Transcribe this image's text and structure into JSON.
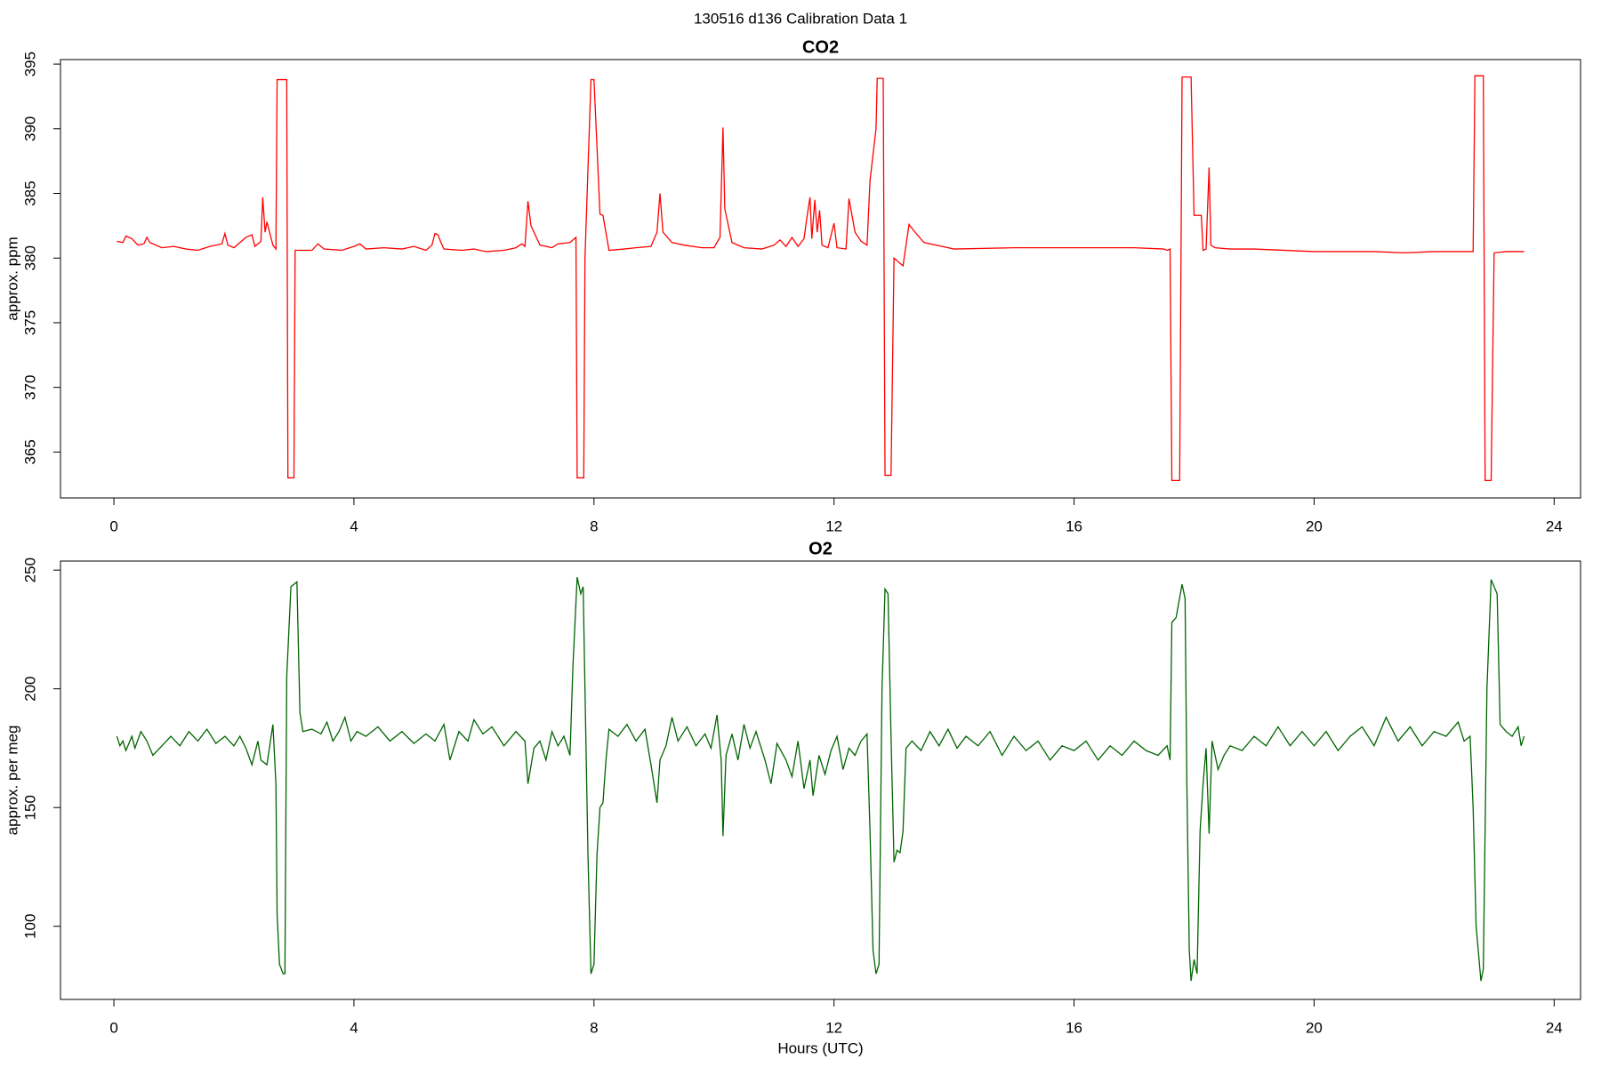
{
  "title": "130516   d136   Calibration Data 1",
  "chart_data": [
    {
      "type": "line",
      "title": "CO2",
      "ylabel": "approx. ppm",
      "color": "#ff0000",
      "xlim": [
        -0.89,
        24.44
      ],
      "xticks": [
        0,
        4,
        8,
        12,
        16,
        20,
        24
      ],
      "ylim": [
        361.45,
        395.35
      ],
      "yticks": [
        365,
        370,
        375,
        380,
        385,
        390,
        395
      ],
      "x": [
        0.05,
        0.15,
        0.2,
        0.3,
        0.4,
        0.5,
        0.55,
        0.6,
        0.8,
        1.0,
        1.2,
        1.4,
        1.6,
        1.8,
        1.85,
        1.9,
        2.0,
        2.2,
        2.3,
        2.35,
        2.45,
        2.48,
        2.52,
        2.55,
        2.65,
        2.7,
        2.72,
        2.88,
        2.9,
        3.0,
        3.02,
        3.3,
        3.4,
        3.5,
        3.8,
        4.0,
        4.1,
        4.2,
        4.5,
        4.8,
        5.0,
        5.2,
        5.3,
        5.35,
        5.4,
        5.45,
        5.5,
        5.8,
        6.0,
        6.2,
        6.5,
        6.7,
        6.8,
        6.85,
        6.9,
        6.95,
        7.1,
        7.3,
        7.4,
        7.6,
        7.7,
        7.72,
        7.83,
        7.85,
        7.95,
        8.0,
        8.1,
        8.15,
        8.25,
        8.5,
        8.7,
        8.95,
        9.05,
        9.1,
        9.15,
        9.3,
        9.5,
        9.8,
        10.0,
        10.1,
        10.15,
        10.18,
        10.3,
        10.5,
        10.8,
        11.0,
        11.1,
        11.2,
        11.3,
        11.4,
        11.5,
        11.55,
        11.6,
        11.63,
        11.68,
        11.72,
        11.76,
        11.8,
        11.9,
        12.0,
        12.05,
        12.2,
        12.25,
        12.35,
        12.45,
        12.55,
        12.6,
        12.7,
        12.72,
        12.82,
        12.85,
        12.95,
        13.0,
        13.15,
        13.2,
        13.25,
        13.35,
        13.5,
        13.8,
        14.0,
        15.0,
        16.0,
        17.0,
        17.5,
        17.55,
        17.6,
        17.63,
        17.76,
        17.8,
        17.95,
        18.0,
        18.12,
        18.15,
        18.2,
        18.25,
        18.28,
        18.35,
        18.6,
        19.0,
        20.0,
        21.0,
        21.5,
        22.0,
        22.65,
        22.68,
        22.82,
        22.85,
        22.95,
        23.0,
        23.2,
        23.5
      ],
      "values": [
        381.3,
        381.2,
        381.7,
        381.5,
        381.0,
        381.1,
        381.6,
        381.2,
        380.8,
        380.9,
        380.7,
        380.6,
        380.9,
        381.1,
        381.9,
        381.0,
        380.8,
        381.6,
        381.8,
        380.9,
        381.3,
        384.7,
        382.0,
        382.8,
        381.0,
        380.7,
        393.8,
        393.8,
        363.0,
        363.0,
        380.6,
        380.6,
        381.1,
        380.7,
        380.6,
        380.9,
        381.1,
        380.7,
        380.8,
        380.7,
        380.9,
        380.6,
        381.0,
        381.9,
        381.8,
        381.2,
        380.7,
        380.6,
        380.7,
        380.5,
        380.6,
        380.8,
        381.1,
        380.9,
        384.4,
        382.5,
        381.0,
        380.8,
        381.1,
        381.2,
        381.6,
        363.0,
        363.0,
        380.0,
        393.8,
        393.8,
        383.4,
        383.3,
        380.6,
        380.7,
        380.8,
        380.9,
        382.0,
        385.0,
        382.0,
        381.2,
        381.0,
        380.8,
        380.8,
        381.6,
        390.1,
        383.8,
        381.2,
        380.8,
        380.7,
        381.0,
        381.4,
        380.9,
        381.6,
        380.9,
        381.5,
        383.2,
        384.7,
        381.5,
        384.5,
        382.0,
        383.7,
        381.0,
        380.8,
        382.7,
        380.8,
        380.7,
        384.6,
        382.0,
        381.3,
        381.0,
        386.0,
        390.0,
        393.9,
        393.9,
        363.2,
        363.2,
        380.0,
        379.4,
        381.0,
        382.6,
        382.0,
        381.2,
        380.9,
        380.7,
        380.8,
        380.8,
        380.8,
        380.7,
        380.6,
        380.7,
        362.8,
        362.8,
        394.0,
        394.0,
        383.3,
        383.3,
        380.6,
        380.7,
        387.0,
        381.0,
        380.8,
        380.7,
        380.7,
        380.5,
        380.5,
        380.4,
        380.5,
        380.5,
        394.1,
        394.1,
        362.8,
        362.8,
        380.4,
        380.5,
        380.5
      ]
    },
    {
      "type": "line",
      "title": "O2",
      "ylabel": "approx. per meg",
      "xlabel": "Hours (UTC)",
      "color": "#006400",
      "xlim": [
        -0.89,
        24.44
      ],
      "xticks": [
        0,
        4,
        8,
        12,
        16,
        20,
        24
      ],
      "ylim": [
        69.2,
        253.8
      ],
      "yticks": [
        100,
        150,
        200,
        250
      ],
      "x": [
        0.05,
        0.1,
        0.15,
        0.2,
        0.3,
        0.35,
        0.45,
        0.55,
        0.65,
        0.8,
        0.95,
        1.1,
        1.25,
        1.4,
        1.55,
        1.7,
        1.85,
        2.0,
        2.1,
        2.2,
        2.3,
        2.4,
        2.45,
        2.55,
        2.65,
        2.7,
        2.72,
        2.76,
        2.82,
        2.85,
        2.88,
        2.95,
        3.05,
        3.1,
        3.15,
        3.3,
        3.45,
        3.55,
        3.65,
        3.75,
        3.85,
        3.95,
        4.05,
        4.2,
        4.4,
        4.6,
        4.8,
        5.0,
        5.2,
        5.35,
        5.5,
        5.6,
        5.75,
        5.9,
        6.0,
        6.15,
        6.3,
        6.5,
        6.7,
        6.85,
        6.9,
        7.0,
        7.1,
        7.2,
        7.3,
        7.4,
        7.5,
        7.6,
        7.65,
        7.72,
        7.78,
        7.82,
        7.85,
        7.9,
        7.95,
        8.0,
        8.05,
        8.1,
        8.15,
        8.2,
        8.25,
        8.4,
        8.55,
        8.7,
        8.85,
        8.95,
        9.05,
        9.1,
        9.2,
        9.3,
        9.4,
        9.55,
        9.7,
        9.85,
        9.95,
        10.05,
        10.12,
        10.15,
        10.2,
        10.3,
        10.4,
        10.5,
        10.6,
        10.7,
        10.85,
        10.95,
        11.05,
        11.2,
        11.3,
        11.4,
        11.5,
        11.6,
        11.65,
        11.75,
        11.85,
        11.95,
        12.05,
        12.15,
        12.25,
        12.35,
        12.45,
        12.55,
        12.6,
        12.65,
        12.7,
        12.75,
        12.8,
        12.85,
        12.9,
        12.95,
        13.0,
        13.05,
        13.1,
        13.15,
        13.2,
        13.3,
        13.45,
        13.6,
        13.75,
        13.9,
        14.05,
        14.2,
        14.4,
        14.6,
        14.8,
        15.0,
        15.2,
        15.4,
        15.6,
        15.8,
        16.0,
        16.2,
        16.4,
        16.6,
        16.8,
        17.0,
        17.2,
        17.4,
        17.55,
        17.6,
        17.63,
        17.7,
        17.8,
        17.85,
        17.88,
        17.92,
        17.95,
        18.0,
        18.05,
        18.1,
        18.15,
        18.2,
        18.25,
        18.3,
        18.4,
        18.5,
        18.6,
        18.8,
        19.0,
        19.2,
        19.4,
        19.6,
        19.8,
        20.0,
        20.2,
        20.4,
        20.6,
        20.8,
        21.0,
        21.2,
        21.4,
        21.6,
        21.8,
        22.0,
        22.2,
        22.4,
        22.5,
        22.6,
        22.65,
        22.7,
        22.78,
        22.82,
        22.88,
        22.95,
        23.05,
        23.1,
        23.2,
        23.3,
        23.4,
        23.45,
        23.5
      ],
      "values": [
        180,
        176,
        178,
        174,
        180,
        175,
        182,
        178,
        172,
        176,
        180,
        176,
        182,
        178,
        183,
        177,
        180,
        176,
        180,
        175,
        168,
        178,
        170,
        168,
        185,
        160,
        105,
        84,
        80,
        80,
        205,
        243,
        245,
        190,
        182,
        183,
        181,
        186,
        178,
        182,
        188,
        178,
        182,
        180,
        184,
        178,
        182,
        177,
        181,
        178,
        185,
        170,
        182,
        178,
        187,
        181,
        184,
        176,
        182,
        178,
        160,
        175,
        178,
        170,
        182,
        176,
        180,
        172,
        210,
        247,
        240,
        243,
        200,
        130,
        80,
        84,
        130,
        150,
        152,
        170,
        183,
        180,
        185,
        178,
        183,
        168,
        152,
        170,
        176,
        188,
        178,
        184,
        176,
        181,
        175,
        189,
        170,
        138,
        172,
        181,
        170,
        185,
        175,
        182,
        170,
        160,
        177,
        170,
        163,
        178,
        158,
        170,
        155,
        172,
        164,
        174,
        180,
        166,
        175,
        172,
        178,
        181,
        140,
        90,
        80,
        84,
        200,
        242,
        240,
        180,
        127,
        132,
        131,
        140,
        175,
        178,
        174,
        182,
        176,
        183,
        175,
        180,
        176,
        182,
        172,
        180,
        174,
        178,
        170,
        176,
        174,
        178,
        170,
        176,
        172,
        178,
        174,
        172,
        176,
        170,
        228,
        230,
        244,
        238,
        160,
        90,
        77,
        86,
        80,
        140,
        160,
        175,
        139,
        178,
        166,
        172,
        176,
        174,
        180,
        176,
        184,
        176,
        182,
        176,
        182,
        174,
        180,
        184,
        176,
        188,
        178,
        184,
        176,
        182,
        180,
        186,
        178,
        180,
        150,
        100,
        77,
        82,
        200,
        246,
        240,
        185,
        182,
        180,
        184,
        176,
        180
      ]
    }
  ]
}
